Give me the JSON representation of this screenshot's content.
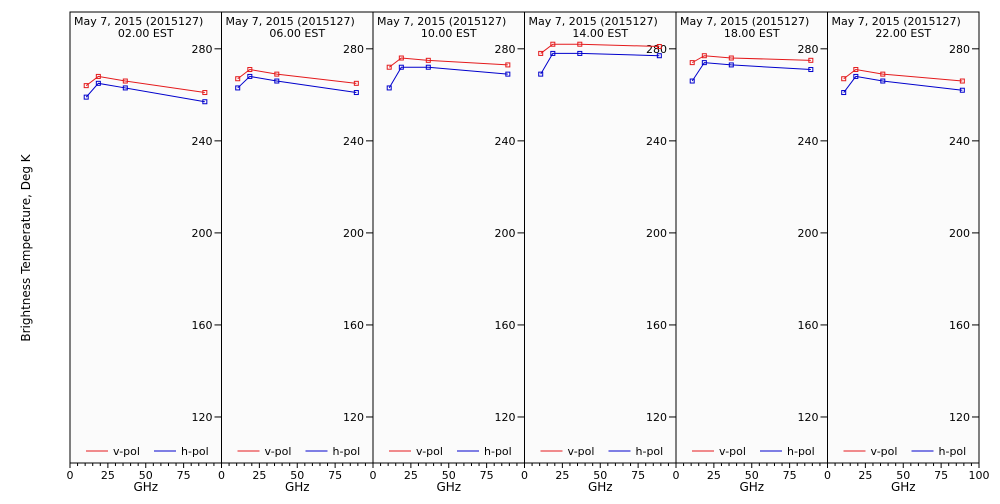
{
  "figure": {
    "ylabel": "Brightness Temperature, Deg K",
    "xlabel": "GHz",
    "background": "#fbfbfb",
    "vpol_color": "#e41a1c",
    "hpol_color": "#0000cc"
  },
  "chart_data": [
    {
      "type": "line",
      "title": "May  7, 2015 (2015127)",
      "subtitle": "02.00 EST",
      "xlabel": "GHz",
      "ylabel": "Brightness Temperature, Deg K",
      "xlim": [
        0,
        100
      ],
      "ylim": [
        100,
        296
      ],
      "xticks": [
        0,
        25,
        50,
        75,
        100
      ],
      "yticks": [
        120,
        160,
        200,
        240,
        280
      ],
      "x": [
        10.7,
        18.7,
        36.5,
        89.0
      ],
      "series": [
        {
          "name": "v-pol",
          "values": [
            264,
            268,
            266,
            261
          ]
        },
        {
          "name": "h-pol",
          "values": [
            259,
            265,
            263,
            257
          ]
        }
      ]
    },
    {
      "type": "line",
      "title": "May  7, 2015 (2015127)",
      "subtitle": "06.00 EST",
      "xlabel": "GHz",
      "ylabel": "Brightness Temperature, Deg K",
      "xlim": [
        0,
        100
      ],
      "ylim": [
        100,
        296
      ],
      "xticks": [
        0,
        25,
        50,
        75,
        100
      ],
      "yticks": [
        120,
        160,
        200,
        240,
        280
      ],
      "x": [
        10.7,
        18.7,
        36.5,
        89.0
      ],
      "series": [
        {
          "name": "v-pol",
          "values": [
            267,
            271,
            269,
            265
          ]
        },
        {
          "name": "h-pol",
          "values": [
            263,
            268,
            266,
            261
          ]
        }
      ]
    },
    {
      "type": "line",
      "title": "May  7, 2015 (2015127)",
      "subtitle": "10.00 EST",
      "xlabel": "GHz",
      "ylabel": "Brightness Temperature, Deg K",
      "xlim": [
        0,
        100
      ],
      "ylim": [
        100,
        296
      ],
      "xticks": [
        0,
        25,
        50,
        75,
        100
      ],
      "yticks": [
        120,
        160,
        200,
        240,
        280
      ],
      "x": [
        10.7,
        18.7,
        36.5,
        89.0
      ],
      "series": [
        {
          "name": "v-pol",
          "values": [
            272,
            276,
            275,
            273
          ]
        },
        {
          "name": "h-pol",
          "values": [
            263,
            272,
            272,
            269
          ]
        }
      ]
    },
    {
      "type": "line",
      "title": "May  7, 2015 (2015127)",
      "subtitle": "14.00 EST",
      "xlabel": "GHz",
      "ylabel": "Brightness Temperature, Deg K",
      "xlim": [
        0,
        100
      ],
      "ylim": [
        100,
        296
      ],
      "xticks": [
        0,
        25,
        50,
        75,
        100
      ],
      "yticks": [
        120,
        160,
        200,
        240,
        280
      ],
      "x": [
        10.7,
        18.7,
        36.5,
        89.0
      ],
      "series": [
        {
          "name": "v-pol",
          "values": [
            278,
            282,
            282,
            281
          ]
        },
        {
          "name": "h-pol",
          "values": [
            269,
            278,
            278,
            277
          ]
        }
      ]
    },
    {
      "type": "line",
      "title": "May  7, 2015 (2015127)",
      "subtitle": "18.00 EST",
      "xlabel": "GHz",
      "ylabel": "Brightness Temperature, Deg K",
      "xlim": [
        0,
        100
      ],
      "ylim": [
        100,
        296
      ],
      "xticks": [
        0,
        25,
        50,
        75,
        100
      ],
      "yticks": [
        120,
        160,
        200,
        240,
        280
      ],
      "x": [
        10.7,
        18.7,
        36.5,
        89.0
      ],
      "series": [
        {
          "name": "v-pol",
          "values": [
            274,
            277,
            276,
            275
          ]
        },
        {
          "name": "h-pol",
          "values": [
            266,
            274,
            273,
            271
          ]
        }
      ]
    },
    {
      "type": "line",
      "title": "May  7, 2015 (2015127)",
      "subtitle": "22.00 EST",
      "xlabel": "GHz",
      "ylabel": "Brightness Temperature, Deg K",
      "xlim": [
        0,
        100
      ],
      "ylim": [
        100,
        296
      ],
      "xticks": [
        0,
        25,
        50,
        75,
        100
      ],
      "yticks": [
        120,
        160,
        200,
        240,
        280
      ],
      "x": [
        10.7,
        18.7,
        36.5,
        89.0
      ],
      "series": [
        {
          "name": "v-pol",
          "values": [
            267,
            271,
            269,
            266
          ]
        },
        {
          "name": "h-pol",
          "values": [
            261,
            268,
            266,
            262
          ]
        }
      ]
    }
  ]
}
